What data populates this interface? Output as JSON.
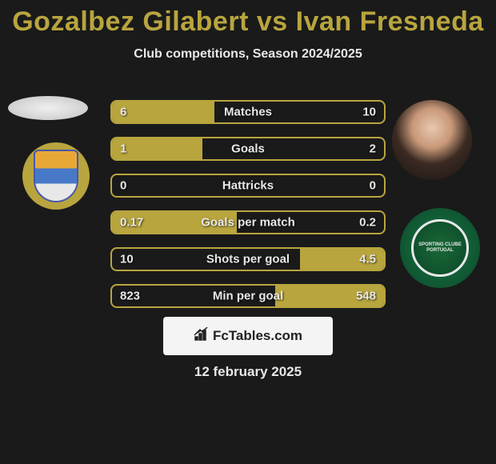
{
  "title": "Gozalbez Gilabert vs Ivan Fresneda",
  "subtitle": "Club competitions, Season 2024/2025",
  "footer_site": "FcTables.com",
  "date": "12 february 2025",
  "accent_color": "#b8a53e",
  "text_color": "#e8e8e8",
  "background_color": "#1a1a1a",
  "club_right_text": "SPORTING CLUBE PORTUGAL",
  "stats": [
    {
      "label": "Matches",
      "left_val": "6",
      "right_val": "10",
      "left_pct": 37.5,
      "right_pct": 0
    },
    {
      "label": "Goals",
      "left_val": "1",
      "right_val": "2",
      "left_pct": 33.3,
      "right_pct": 0
    },
    {
      "label": "Hattricks",
      "left_val": "0",
      "right_val": "0",
      "left_pct": 0,
      "right_pct": 0
    },
    {
      "label": "Goals per match",
      "left_val": "0.17",
      "right_val": "0.2",
      "left_pct": 45.9,
      "right_pct": 0
    },
    {
      "label": "Shots per goal",
      "left_val": "10",
      "right_val": "4.5",
      "left_pct": 0,
      "right_pct": 31
    },
    {
      "label": "Min per goal",
      "left_val": "823",
      "right_val": "548",
      "left_pct": 0,
      "right_pct": 40
    }
  ]
}
